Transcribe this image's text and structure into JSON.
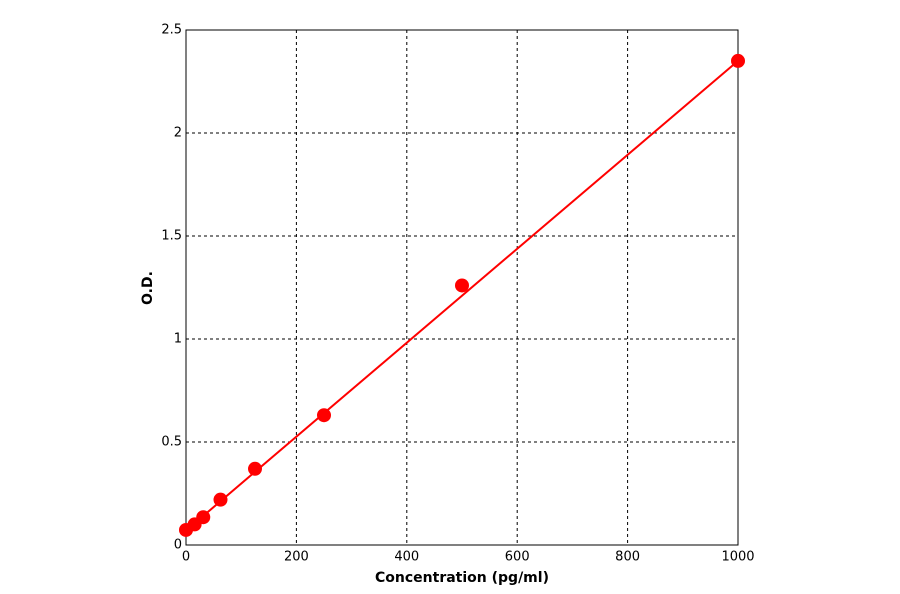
{
  "chart_data": {
    "type": "scatter",
    "xlabel": "Concentration (pg/ml)",
    "ylabel": "O.D.",
    "xlim": [
      0,
      1000
    ],
    "ylim": [
      0,
      2.5
    ],
    "xticks": [
      0,
      200,
      400,
      600,
      800,
      1000
    ],
    "yticks": [
      0,
      0.5,
      1,
      1.5,
      2,
      2.5
    ],
    "grid": true,
    "series": [
      {
        "color": "#ff0000",
        "x": [
          0,
          15.6,
          31.25,
          62.5,
          125,
          250,
          500,
          1000
        ],
        "values": [
          0.073,
          0.1,
          0.135,
          0.22,
          0.37,
          0.63,
          1.26,
          2.35
        ]
      }
    ],
    "fit": {
      "color": "#ff0000",
      "x": [
        0,
        1000
      ],
      "values": [
        0.07,
        2.35
      ]
    }
  }
}
